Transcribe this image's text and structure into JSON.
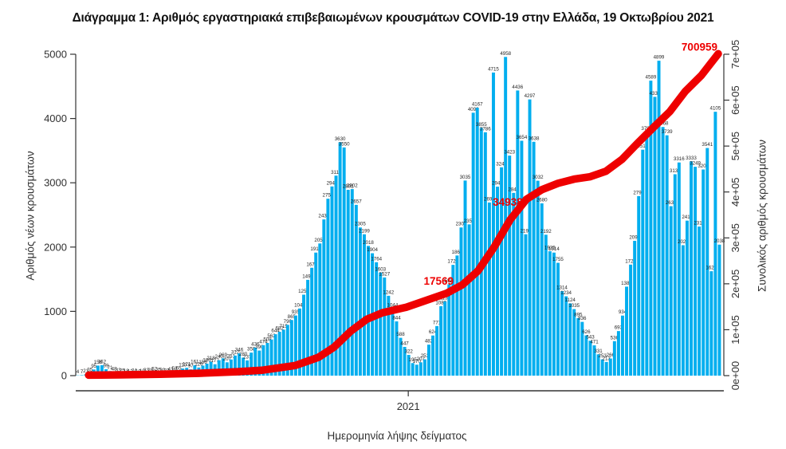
{
  "title": "Διάγραμμα 1: Αριθμός εργαστηριακά επιβεβαιωμένων κρουσμάτων COVID-19 στην Ελλάδα, 19 Οκτωβρίου 2021",
  "chart_data": {
    "type": "bar+line",
    "title": "Διάγραμμα 1: Αριθμός εργαστηριακά επιβεβαιωμένων κρουσμάτων COVID-19 στην Ελλάδα, 19 Οκτωβρίου 2021",
    "axes": {
      "y_left": {
        "label": "Αριθμός νέων κρουσμάτων",
        "ticks": [
          0,
          1000,
          2000,
          3000,
          4000,
          5000
        ],
        "min": 0,
        "max": 5000
      },
      "y_right": {
        "label": "Συνολικός αριθμός κρουσμάτων",
        "ticks": [
          "0e+00",
          "1e+05",
          "2e+05",
          "3e+05",
          "4e+05",
          "5e+05",
          "6e+05",
          "7e+05"
        ],
        "min": 0,
        "max": 700000
      },
      "x": {
        "label": "Ημερομηνία λήψης δείγματος",
        "tick": "2021",
        "tick_frac": 0.515
      }
    },
    "bar_series": {
      "name": "Αριθμός νέων κρουσμάτων (ημερήσια)",
      "color": "#00AEEF",
      "label_color": "#262626",
      "values": [
        4,
        7,
        21,
        35,
        95,
        156,
        162,
        99,
        71,
        48,
        33,
        25,
        18,
        12,
        24,
        10,
        19,
        33,
        28,
        52,
        35,
        30,
        27,
        43,
        58,
        65,
        110,
        121,
        97,
        161,
        126,
        156,
        186,
        218,
        177,
        240,
        269,
        207,
        251,
        312,
        346,
        280,
        237,
        358,
        436,
        390,
        474,
        508,
        562,
        644,
        682,
        715,
        790,
        865,
        935,
        1044,
        1259,
        1490,
        1678,
        1914,
        2056,
        2430,
        2752,
        2943,
        3111,
        3630,
        3550,
        2891,
        2902,
        2657,
        2305,
        2199,
        2018,
        1904,
        1764,
        1603,
        1527,
        1242,
        1044,
        844,
        588,
        447,
        322,
        195,
        170,
        207,
        253,
        482,
        624,
        771,
        1080,
        1153,
        1421,
        1723,
        1869,
        2305,
        3035,
        2353,
        4090,
        4167,
        3855,
        3786,
        2693,
        4715,
        2940,
        3241,
        4958,
        3423,
        2843,
        4436,
        3654,
        2199,
        4297,
        3638,
        3032,
        2680,
        2192,
        1935,
        1914,
        1755,
        1314,
        1234,
        1124,
        1035,
        895,
        836,
        626,
        543,
        471,
        331,
        253,
        213,
        266,
        536,
        693,
        934,
        1384,
        1727,
        2097,
        2793,
        3515,
        3792,
        4589,
        4337,
        4899,
        3868,
        3739,
        2636,
        3133,
        3316,
        2029,
        2411,
        3333,
        3249,
        2319,
        3207,
        3541,
        1624,
        4105,
        2038
      ]
    },
    "line_series": {
      "name": "Συνολικός αριθμός κρουσμάτων (αθροιστικά)",
      "color": "#EE0000",
      "points": [
        [
          0.02,
          1000
        ],
        [
          0.07,
          1800
        ],
        [
          0.13,
          3000
        ],
        [
          0.19,
          5000
        ],
        [
          0.25,
          8500
        ],
        [
          0.29,
          12000
        ],
        [
          0.34,
          22000
        ],
        [
          0.376,
          40000
        ],
        [
          0.4,
          62000
        ],
        [
          0.426,
          97000
        ],
        [
          0.451,
          123000
        ],
        [
          0.475,
          137000
        ],
        [
          0.512,
          149000
        ],
        [
          0.549,
          167000
        ],
        [
          0.574,
          179000
        ],
        [
          0.599,
          198000
        ],
        [
          0.623,
          228000
        ],
        [
          0.648,
          280000
        ],
        [
          0.673,
          340000
        ],
        [
          0.698,
          384000
        ],
        [
          0.722,
          405000
        ],
        [
          0.747,
          419000
        ],
        [
          0.772,
          428000
        ],
        [
          0.796,
          433000
        ],
        [
          0.821,
          445000
        ],
        [
          0.846,
          471000
        ],
        [
          0.87,
          506000
        ],
        [
          0.895,
          541000
        ],
        [
          0.92,
          575000
        ],
        [
          0.944,
          619000
        ],
        [
          0.969,
          654000
        ],
        [
          0.995,
          700959
        ]
      ]
    },
    "annotations": [
      {
        "text": "17569",
        "fx": 0.562,
        "value": 198000,
        "layer": "under",
        "color": "#EE0000"
      },
      {
        "text": "34938",
        "fx": 0.669,
        "value": 370000,
        "layer": "under",
        "color": "#EE0000"
      },
      {
        "text": "700959",
        "fx": 0.966,
        "value": 708000,
        "layer": "over",
        "color": "#EE0000"
      }
    ],
    "grid": false,
    "legend": "none"
  }
}
